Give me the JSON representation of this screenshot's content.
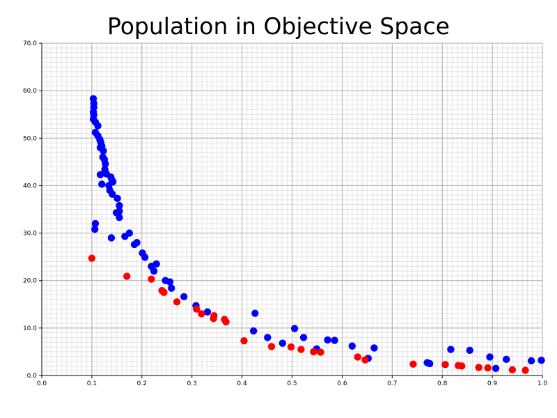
{
  "chart_data": {
    "type": "scatter",
    "title": "Population in Objective Space",
    "xlabel": "",
    "ylabel": "",
    "xlim": [
      0.0,
      1.0
    ],
    "ylim": [
      0.0,
      70.0
    ],
    "x_ticks": [
      "0.0",
      "0.1",
      "0.2",
      "0.3",
      "0.4",
      "0.5",
      "0.6",
      "0.7",
      "0.8",
      "0.9",
      "1.0"
    ],
    "y_ticks": [
      "0.0",
      "10.0",
      "20.0",
      "30.0",
      "40.0",
      "50.0",
      "60.0",
      "70.0"
    ],
    "grid": true,
    "legend": "none",
    "series": [
      {
        "color": "#0000ff",
        "points": [
          [
            0.103,
            58.3
          ],
          [
            0.104,
            57.3
          ],
          [
            0.104,
            56.5
          ],
          [
            0.103,
            55.5
          ],
          [
            0.104,
            54.9
          ],
          [
            0.103,
            54.0
          ],
          [
            0.107,
            53.4
          ],
          [
            0.112,
            52.6
          ],
          [
            0.107,
            51.2
          ],
          [
            0.112,
            50.5
          ],
          [
            0.116,
            49.7
          ],
          [
            0.118,
            49.1
          ],
          [
            0.12,
            48.3
          ],
          [
            0.117,
            48.0
          ],
          [
            0.123,
            47.3
          ],
          [
            0.122,
            46.0
          ],
          [
            0.125,
            45.5
          ],
          [
            0.127,
            44.6
          ],
          [
            0.126,
            43.4
          ],
          [
            0.129,
            42.5
          ],
          [
            0.117,
            42.3
          ],
          [
            0.138,
            41.8
          ],
          [
            0.14,
            41.2
          ],
          [
            0.142,
            40.8
          ],
          [
            0.12,
            40.3
          ],
          [
            0.134,
            40.0
          ],
          [
            0.136,
            39.0
          ],
          [
            0.141,
            38.2
          ],
          [
            0.151,
            37.3
          ],
          [
            0.155,
            35.8
          ],
          [
            0.155,
            34.6
          ],
          [
            0.149,
            34.3
          ],
          [
            0.155,
            33.3
          ],
          [
            0.107,
            32.0
          ],
          [
            0.106,
            30.8
          ],
          [
            0.175,
            30.0
          ],
          [
            0.166,
            29.3
          ],
          [
            0.139,
            29.0
          ],
          [
            0.19,
            28.0
          ],
          [
            0.185,
            27.6
          ],
          [
            0.201,
            25.8
          ],
          [
            0.206,
            24.9
          ],
          [
            0.229,
            23.5
          ],
          [
            0.219,
            23.0
          ],
          [
            0.224,
            22.0
          ],
          [
            0.247,
            20.0
          ],
          [
            0.256,
            19.7
          ],
          [
            0.259,
            18.4
          ],
          [
            0.284,
            16.6
          ],
          [
            0.308,
            14.7
          ],
          [
            0.331,
            13.4
          ],
          [
            0.426,
            13.1
          ],
          [
            0.505,
            9.9
          ],
          [
            0.423,
            9.4
          ],
          [
            0.451,
            8.0
          ],
          [
            0.523,
            8.0
          ],
          [
            0.571,
            7.5
          ],
          [
            0.585,
            7.4
          ],
          [
            0.481,
            6.8
          ],
          [
            0.62,
            6.2
          ],
          [
            0.664,
            5.8
          ],
          [
            0.549,
            5.6
          ],
          [
            0.817,
            5.5
          ],
          [
            0.855,
            5.3
          ],
          [
            0.652,
            3.6
          ],
          [
            0.895,
            3.9
          ],
          [
            0.928,
            3.4
          ],
          [
            0.978,
            3.1
          ],
          [
            0.998,
            3.2
          ],
          [
            0.77,
            2.7
          ],
          [
            0.775,
            2.5
          ],
          [
            0.907,
            1.5
          ]
        ]
      },
      {
        "color": "#ff0000",
        "points": [
          [
            0.1,
            24.7
          ],
          [
            0.17,
            20.9
          ],
          [
            0.219,
            20.3
          ],
          [
            0.24,
            17.9
          ],
          [
            0.244,
            17.5
          ],
          [
            0.27,
            15.5
          ],
          [
            0.309,
            14.0
          ],
          [
            0.319,
            13.0
          ],
          [
            0.344,
            12.6
          ],
          [
            0.343,
            12.0
          ],
          [
            0.365,
            11.8
          ],
          [
            0.368,
            11.3
          ],
          [
            0.404,
            7.3
          ],
          [
            0.459,
            6.1
          ],
          [
            0.498,
            6.0
          ],
          [
            0.518,
            5.5
          ],
          [
            0.543,
            5.0
          ],
          [
            0.557,
            4.9
          ],
          [
            0.631,
            3.9
          ],
          [
            0.646,
            3.3
          ],
          [
            0.742,
            2.4
          ],
          [
            0.806,
            2.3
          ],
          [
            0.832,
            2.1
          ],
          [
            0.839,
            2.0
          ],
          [
            0.873,
            1.7
          ],
          [
            0.891,
            1.6
          ],
          [
            0.94,
            1.2
          ],
          [
            0.966,
            1.1
          ]
        ]
      }
    ]
  }
}
